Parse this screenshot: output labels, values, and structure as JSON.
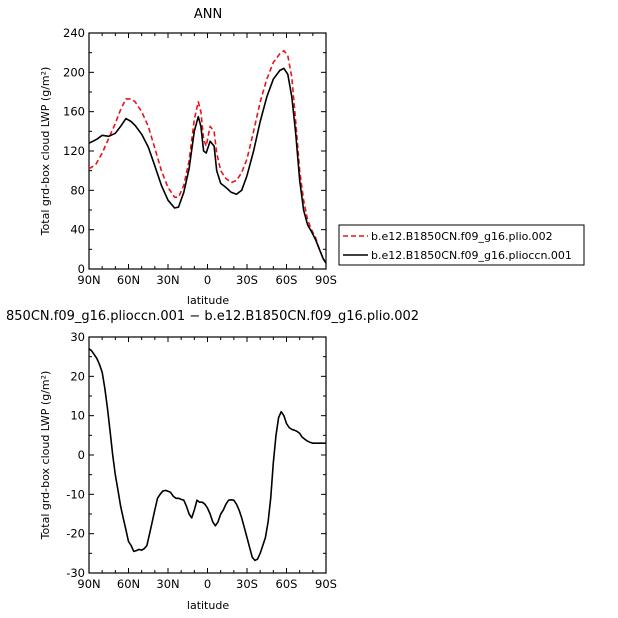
{
  "chart_data": [
    {
      "type": "line",
      "title": "ANN",
      "xlabel": "latitude",
      "ylabel": "Total grd-box cloud LWP (g/m²)",
      "x_ticks": [
        "90N",
        "60N",
        "30N",
        "0",
        "30S",
        "60S",
        "90S"
      ],
      "x_tick_values": [
        90,
        60,
        30,
        0,
        -30,
        -60,
        -90
      ],
      "xlim": [
        90,
        -90
      ],
      "ylim": [
        0,
        240
      ],
      "y_ticks": [
        0,
        40,
        80,
        120,
        160,
        200,
        240
      ],
      "grid": false,
      "legend": "right",
      "series": [
        {
          "name": "b.e12.B1850CN.f09_g16.plio.002",
          "color": "#e8141a",
          "dash": "dashed",
          "x": [
            90,
            85,
            80,
            75,
            70,
            66,
            62,
            58,
            55,
            50,
            45,
            40,
            35,
            30,
            25,
            22,
            18,
            14,
            10,
            7,
            5,
            3,
            1,
            -2,
            -5,
            -7,
            -10,
            -14,
            -18,
            -22,
            -26,
            -30,
            -35,
            -40,
            -45,
            -50,
            -55,
            -58,
            -61,
            -64,
            -67,
            -70,
            -73,
            -76,
            -79,
            -82,
            -85,
            -88,
            -90
          ],
          "y": [
            102,
            106,
            118,
            133,
            148,
            162,
            173,
            173,
            170,
            160,
            145,
            123,
            100,
            83,
            73,
            73,
            85,
            110,
            152,
            170,
            160,
            132,
            125,
            145,
            140,
            118,
            100,
            92,
            88,
            90,
            98,
            112,
            140,
            170,
            193,
            210,
            219,
            222,
            217,
            195,
            150,
            100,
            70,
            50,
            40,
            32,
            20,
            10,
            7
          ]
        },
        {
          "name": "b.e12.B1850CN.f09_g16.plioccn.001",
          "color": "#000000",
          "dash": "solid",
          "x": [
            90,
            87,
            84,
            80,
            75,
            70,
            66,
            62,
            58,
            55,
            50,
            45,
            40,
            35,
            30,
            25,
            22,
            18,
            14,
            10,
            7,
            5,
            3,
            1,
            -2,
            -5,
            -7,
            -10,
            -14,
            -18,
            -22,
            -26,
            -30,
            -35,
            -40,
            -45,
            -50,
            -55,
            -58,
            -61,
            -64,
            -67,
            -70,
            -73,
            -76,
            -79,
            -82,
            -85,
            -88,
            -90
          ],
          "y": [
            128,
            130,
            132,
            136,
            135,
            138,
            145,
            153,
            150,
            146,
            137,
            124,
            105,
            85,
            70,
            62,
            63,
            78,
            102,
            140,
            155,
            145,
            120,
            118,
            130,
            125,
            100,
            87,
            83,
            78,
            76,
            80,
            95,
            120,
            150,
            175,
            193,
            202,
            204,
            198,
            175,
            138,
            90,
            60,
            45,
            38,
            30,
            20,
            10,
            6
          ]
        }
      ]
    },
    {
      "type": "line",
      "title": "850CN.f09_g16.plioccn.001 − b.e12.B1850CN.f09_g16.plio.002",
      "xlabel": "latitude",
      "ylabel": "Total grd-box cloud LWP (g/m²)",
      "x_ticks": [
        "90N",
        "60N",
        "30N",
        "0",
        "30S",
        "60S",
        "90S"
      ],
      "x_tick_values": [
        90,
        60,
        30,
        0,
        -30,
        -60,
        -90
      ],
      "xlim": [
        90,
        -90
      ],
      "ylim": [
        -30,
        30
      ],
      "y_ticks": [
        -30,
        -20,
        -10,
        0,
        10,
        20,
        30
      ],
      "grid": false,
      "series": [
        {
          "color": "#000000",
          "x": [
            90,
            88,
            86,
            84,
            82,
            80,
            78,
            76,
            74,
            72,
            70,
            68,
            66,
            64,
            62,
            60,
            58,
            56,
            54,
            52,
            50,
            48,
            46,
            44,
            42,
            40,
            38,
            36,
            34,
            32,
            30,
            28,
            26,
            24,
            22,
            20,
            18,
            16,
            14,
            12,
            10,
            8,
            6,
            4,
            2,
            0,
            -2,
            -4,
            -6,
            -8,
            -10,
            -12,
            -14,
            -16,
            -18,
            -20,
            -22,
            -24,
            -26,
            -28,
            -30,
            -32,
            -34,
            -36,
            -38,
            -40,
            -42,
            -44,
            -46,
            -48,
            -50,
            -52,
            -54,
            -56,
            -58,
            -60,
            -62,
            -64,
            -66,
            -68,
            -70,
            -72,
            -74,
            -76,
            -78,
            -80,
            -82,
            -84,
            -86,
            -88,
            -90
          ],
          "y": [
            27,
            26.5,
            25.5,
            24.5,
            23,
            21,
            17,
            12,
            6,
            0,
            -5,
            -9,
            -13,
            -16,
            -19,
            -22,
            -23,
            -24.5,
            -24.3,
            -24,
            -24.2,
            -23.8,
            -23,
            -20,
            -17,
            -14,
            -11,
            -10,
            -9.2,
            -9,
            -9.2,
            -9.5,
            -10.5,
            -11,
            -11,
            -11.3,
            -11.5,
            -13,
            -15,
            -16,
            -14,
            -11.5,
            -12,
            -12,
            -12.5,
            -13.5,
            -15,
            -17,
            -18,
            -17,
            -15,
            -14,
            -12.5,
            -11.5,
            -11.4,
            -11.5,
            -12.5,
            -14,
            -16,
            -18.5,
            -21,
            -23.5,
            -26,
            -26.8,
            -26.5,
            -25,
            -23,
            -21,
            -17,
            -11,
            -2,
            5,
            9.5,
            11,
            10,
            8,
            7,
            6.5,
            6.3,
            6,
            5.5,
            4.5,
            4,
            3.5,
            3.2,
            3,
            3,
            3,
            3,
            3,
            3
          ]
        }
      ]
    }
  ]
}
